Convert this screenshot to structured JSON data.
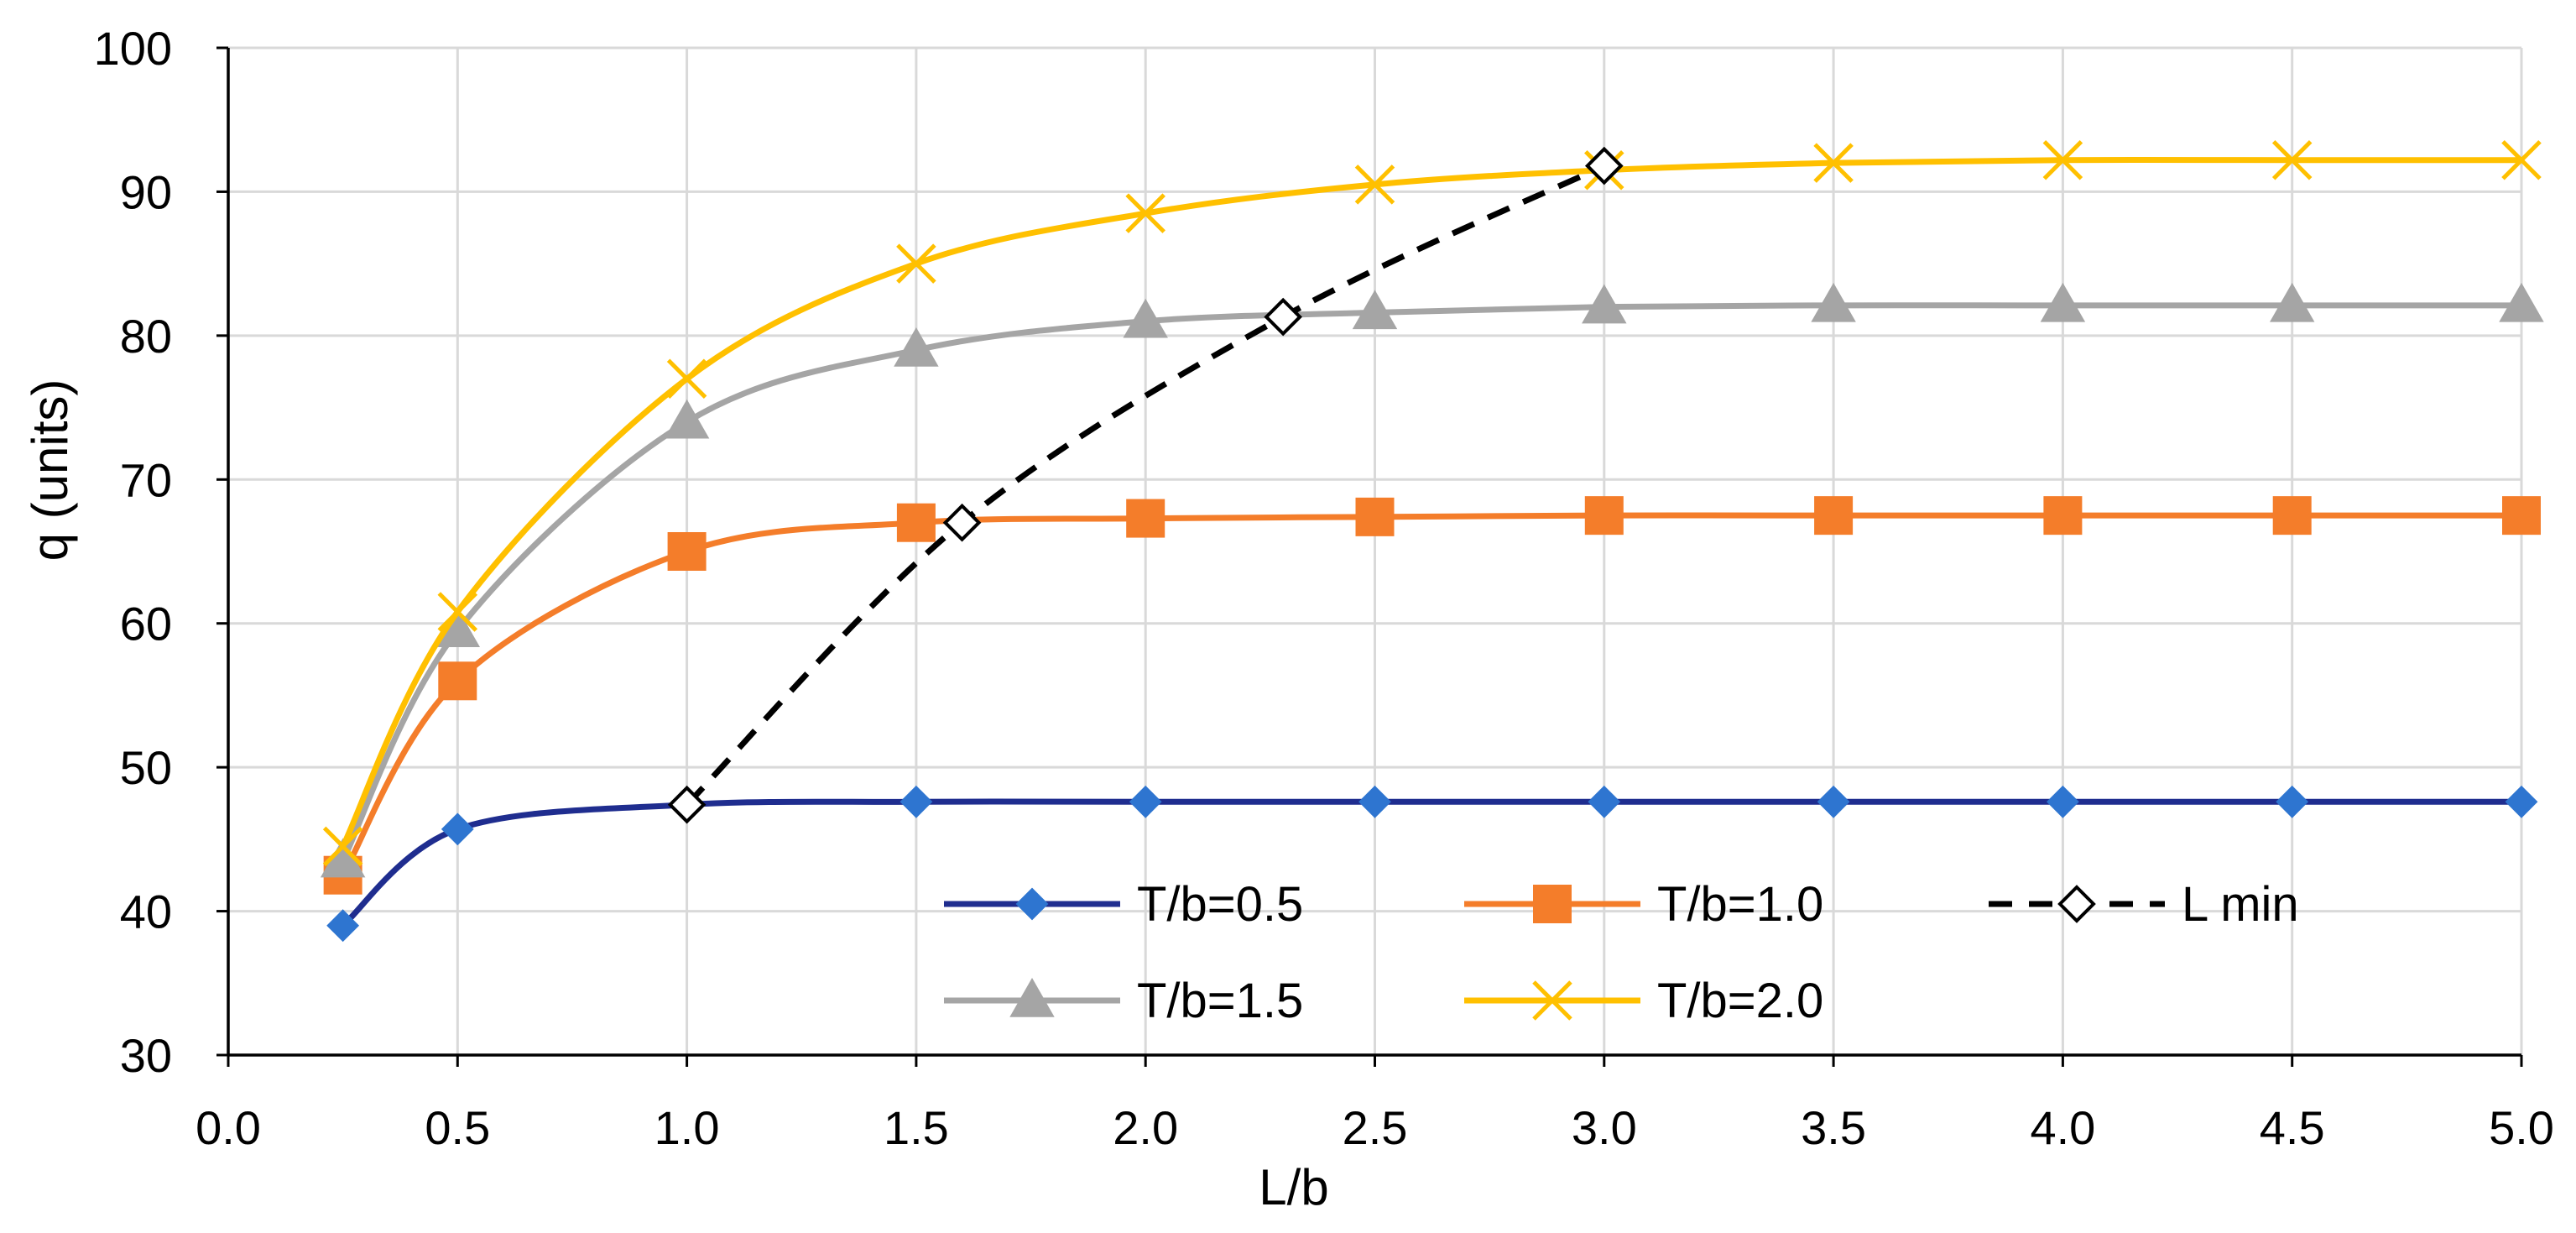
{
  "chart_data": {
    "type": "line",
    "title": "",
    "xlabel": "L/b",
    "ylabel": "q (units)",
    "xlim": [
      0.0,
      5.0
    ],
    "ylim": [
      30,
      100
    ],
    "xticks": [
      "0.0",
      "0.5",
      "1.0",
      "1.5",
      "2.0",
      "2.5",
      "3.0",
      "3.5",
      "4.0",
      "4.5",
      "5.0"
    ],
    "yticks": [
      "30",
      "40",
      "50",
      "60",
      "70",
      "80",
      "90",
      "100"
    ],
    "grid": true,
    "legend_position": "bottom-right",
    "series": [
      {
        "name": "T/b=0.5",
        "color": "#1f2d8f",
        "marker_color": "#2e75d0",
        "marker": "diamond",
        "dash": "solid",
        "x": [
          0.25,
          0.5,
          1.0,
          1.5,
          2.0,
          2.5,
          3.0,
          3.5,
          4.0,
          4.5,
          5.0
        ],
        "y": [
          39.0,
          45.7,
          47.4,
          47.6,
          47.6,
          47.6,
          47.6,
          47.6,
          47.6,
          47.6,
          47.6
        ]
      },
      {
        "name": "T/b=1.0",
        "color": "#f47d2a",
        "marker_color": "#f47d2a",
        "marker": "square",
        "dash": "solid",
        "x": [
          0.25,
          0.5,
          1.0,
          1.5,
          2.0,
          2.5,
          3.0,
          3.5,
          4.0,
          4.5,
          5.0
        ],
        "y": [
          42.5,
          56.0,
          65.0,
          67.0,
          67.3,
          67.4,
          67.5,
          67.5,
          67.5,
          67.5,
          67.5
        ]
      },
      {
        "name": "L min",
        "color": "#000000",
        "marker_color": "#ffffff",
        "marker": "open-diamond",
        "dash": "dashed",
        "x": [
          1.0,
          1.6,
          2.3,
          3.0
        ],
        "y": [
          47.4,
          67.0,
          81.3,
          91.8
        ]
      },
      {
        "name": "T/b=1.5",
        "color": "#a5a5a5",
        "marker_color": "#a5a5a5",
        "marker": "triangle",
        "dash": "solid",
        "x": [
          0.25,
          0.5,
          1.0,
          1.5,
          2.0,
          2.5,
          3.0,
          3.5,
          4.0,
          4.5,
          5.0
        ],
        "y": [
          43.5,
          59.5,
          74.0,
          79.0,
          81.0,
          81.6,
          82.0,
          82.1,
          82.1,
          82.1,
          82.1
        ]
      },
      {
        "name": "T/b=2.0",
        "color": "#ffc000",
        "marker_color": "#ffc000",
        "marker": "x",
        "dash": "solid",
        "x": [
          0.25,
          0.5,
          1.0,
          1.5,
          2.0,
          2.5,
          3.0,
          3.5,
          4.0,
          4.5,
          5.0
        ],
        "y": [
          44.5,
          60.8,
          77.0,
          85.0,
          88.5,
          90.5,
          91.5,
          92.0,
          92.2,
          92.2,
          92.2
        ]
      }
    ]
  }
}
